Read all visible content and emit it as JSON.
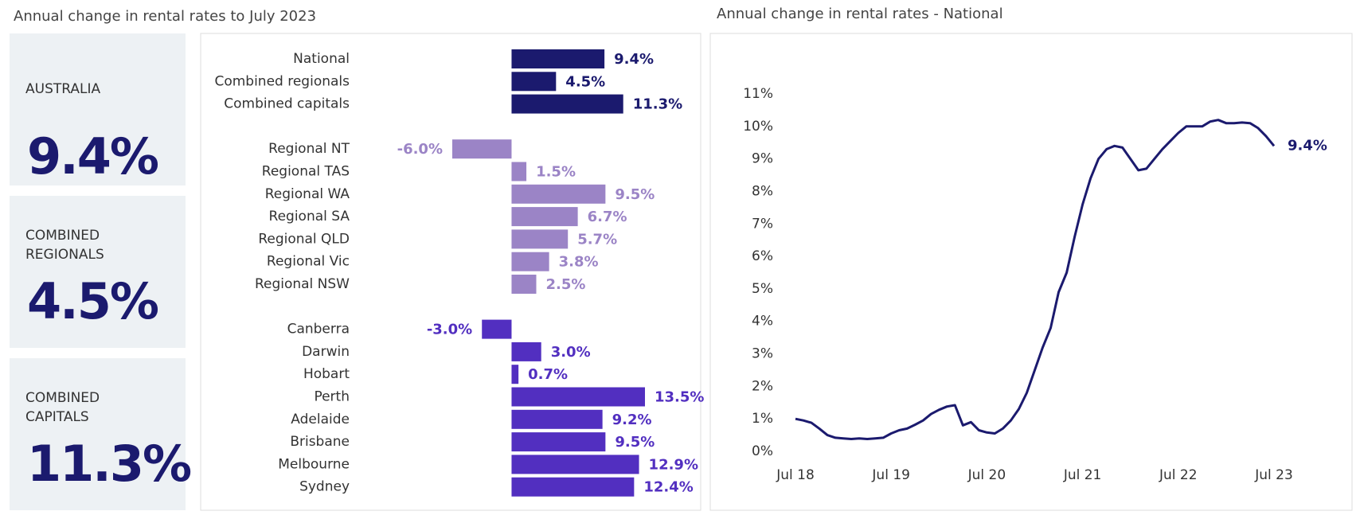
{
  "kpis": [
    {
      "label": "AUSTRALIA",
      "value": "9.4%"
    },
    {
      "label": "COMBINED REGIONALS",
      "value": "4.5%"
    },
    {
      "label": "COMBINED CAPITALS",
      "value": "11.3%"
    }
  ],
  "chart_data": [
    {
      "type": "bar",
      "orientation": "horizontal",
      "title": "Annual change in rental rates to July 2023",
      "groups": [
        {
          "color": "#1b1a6e",
          "categories": [
            "National",
            "Combined regionals",
            "Combined capitals"
          ],
          "values": [
            9.4,
            4.5,
            11.3
          ],
          "value_labels": [
            "9.4%",
            "4.5%",
            "11.3%"
          ]
        },
        {
          "color": "#9b84c6",
          "categories": [
            "Regional NT",
            "Regional TAS",
            "Regional WA",
            "Regional SA",
            "Regional QLD",
            "Regional Vic",
            "Regional NSW"
          ],
          "values": [
            -6.0,
            1.5,
            9.5,
            6.7,
            5.7,
            3.8,
            2.5
          ],
          "value_labels": [
            "-6.0%",
            "1.5%",
            "9.5%",
            "6.7%",
            "5.7%",
            "3.8%",
            "2.5%"
          ]
        },
        {
          "color": "#522fc0",
          "categories": [
            "Canberra",
            "Darwin",
            "Hobart",
            "Perth",
            "Adelaide",
            "Brisbane",
            "Melbourne",
            "Sydney"
          ],
          "values": [
            -3.0,
            3.0,
            0.7,
            13.5,
            9.2,
            9.5,
            12.9,
            12.4
          ],
          "value_labels": [
            "-3.0%",
            "3.0%",
            "0.7%",
            "13.5%",
            "9.2%",
            "9.5%",
            "12.9%",
            "12.4%"
          ]
        }
      ]
    },
    {
      "type": "line",
      "title": "Annual change in rental rates - National",
      "color": "#1b1a6e",
      "categories": [
        "Jul 18",
        null,
        null,
        null,
        null,
        null,
        null,
        null,
        null,
        null,
        null,
        null,
        "Jul 19",
        null,
        null,
        null,
        null,
        null,
        null,
        null,
        null,
        null,
        null,
        null,
        "Jul 20",
        null,
        null,
        null,
        null,
        null,
        null,
        null,
        null,
        null,
        null,
        null,
        "Jul 21",
        null,
        null,
        null,
        null,
        null,
        null,
        null,
        null,
        null,
        null,
        null,
        "Jul 22",
        null,
        null,
        null,
        null,
        null,
        null,
        null,
        null,
        null,
        null,
        null,
        "Jul 23"
      ],
      "values": [
        1.0,
        0.95,
        0.88,
        0.7,
        0.5,
        0.42,
        0.4,
        0.38,
        0.4,
        0.38,
        0.4,
        0.42,
        0.55,
        0.65,
        0.7,
        0.82,
        0.95,
        1.15,
        1.28,
        1.38,
        1.42,
        0.8,
        0.9,
        0.65,
        0.58,
        0.55,
        0.7,
        0.95,
        1.3,
        1.8,
        2.5,
        3.2,
        3.8,
        4.9,
        5.5,
        6.6,
        7.6,
        8.4,
        9.0,
        9.3,
        9.4,
        9.35,
        9.0,
        8.65,
        8.7,
        9.0,
        9.3,
        9.55,
        9.8,
        10.0,
        10.0,
        10.0,
        10.15,
        10.2,
        10.1,
        10.1,
        10.12,
        10.1,
        9.95,
        9.7,
        9.4
      ],
      "value_labels": [
        null,
        null,
        null,
        null,
        null,
        null,
        null,
        null,
        null,
        null,
        null,
        null,
        null,
        null,
        null,
        null,
        null,
        null,
        null,
        null,
        null,
        null,
        null,
        null,
        null,
        null,
        null,
        null,
        null,
        null,
        null,
        null,
        null,
        null,
        null,
        null,
        null,
        null,
        null,
        null,
        null,
        null,
        null,
        null,
        null,
        null,
        null,
        null,
        null,
        null,
        null,
        null,
        null,
        null,
        null,
        null,
        null,
        null,
        null,
        null,
        "9.4%"
      ],
      "ylim": [
        0,
        11
      ],
      "yticks": [
        {
          "value": 0,
          "label": "0%"
        },
        {
          "value": 1,
          "label": "1%"
        },
        {
          "value": 2,
          "label": "2%"
        },
        {
          "value": 3,
          "label": "3%"
        },
        {
          "value": 4,
          "label": "4%"
        },
        {
          "value": 5,
          "label": "5%"
        },
        {
          "value": 6,
          "label": "6%"
        },
        {
          "value": 7,
          "label": "7%"
        },
        {
          "value": 8,
          "label": "8%"
        },
        {
          "value": 9,
          "label": "9%"
        },
        {
          "value": 10,
          "label": "10%"
        },
        {
          "value": 11,
          "label": "11%"
        }
      ],
      "grid": false
    }
  ]
}
